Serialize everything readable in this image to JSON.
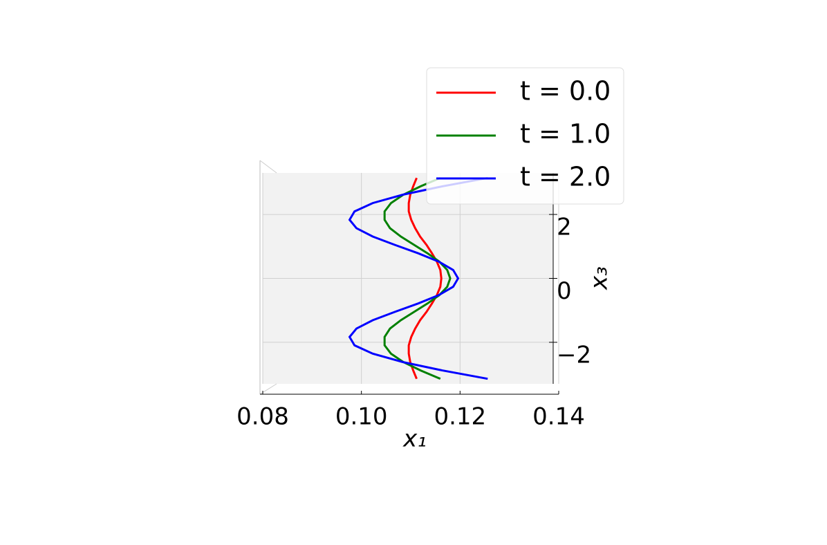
{
  "chart_data": {
    "type": "line",
    "xlabel": "x₁",
    "ylabel": "x₃",
    "x": [
      -3.1416,
      -2.8798,
      -2.618,
      -2.3562,
      -2.0944,
      -1.8326,
      -1.5708,
      -1.309,
      -1.0472,
      -0.7854,
      -0.5236,
      -0.2618,
      0,
      0.2618,
      0.5236,
      0.7854,
      1.0472,
      1.309,
      1.5708,
      1.8326,
      2.0944,
      2.3562,
      2.618,
      2.8798,
      3.1416
    ],
    "series": [
      {
        "name": "t = 0.0",
        "color": "#ff0000",
        "values": [
          0.1112,
          0.1105,
          0.1099,
          0.1096,
          0.1096,
          0.1101,
          0.1109,
          0.1119,
          0.1132,
          0.1143,
          0.1153,
          0.116,
          0.1162,
          0.116,
          0.1153,
          0.1143,
          0.1132,
          0.1119,
          0.1109,
          0.1101,
          0.1096,
          0.1096,
          0.1099,
          0.1105,
          0.1112
        ]
      },
      {
        "name": "t = 1.0",
        "color": "#008000",
        "values": [
          0.116,
          0.112,
          0.1085,
          0.106,
          0.1047,
          0.1047,
          0.1058,
          0.108,
          0.1107,
          0.1134,
          0.1158,
          0.1174,
          0.118,
          0.1174,
          0.1158,
          0.1134,
          0.1107,
          0.108,
          0.1058,
          0.1047,
          0.1047,
          0.106,
          0.1085,
          0.112,
          0.116
        ]
      },
      {
        "name": "t = 2.0",
        "color": "#0000ff",
        "values": [
          0.1256,
          0.1164,
          0.1084,
          0.1023,
          0.0986,
          0.0976,
          0.099,
          0.1023,
          0.1068,
          0.1115,
          0.1157,
          0.1186,
          0.1196,
          0.1186,
          0.1157,
          0.1115,
          0.1068,
          0.1023,
          0.099,
          0.0976,
          0.0986,
          0.1023,
          0.1084,
          0.1164,
          0.1256
        ]
      }
    ],
    "xlim": [
      0.08,
      0.14
    ],
    "xticks": [
      {
        "value": 0.08,
        "label": "0.08"
      },
      {
        "value": 0.1,
        "label": "0.10"
      },
      {
        "value": 0.12,
        "label": "0.12"
      },
      {
        "value": 0.14,
        "label": "0.14"
      }
    ],
    "ylim": [
      -3.3,
      3.3
    ],
    "yticks": [
      {
        "value": -2,
        "label": "−2"
      },
      0,
      2
    ],
    "grid": true,
    "legend": "upper right"
  }
}
